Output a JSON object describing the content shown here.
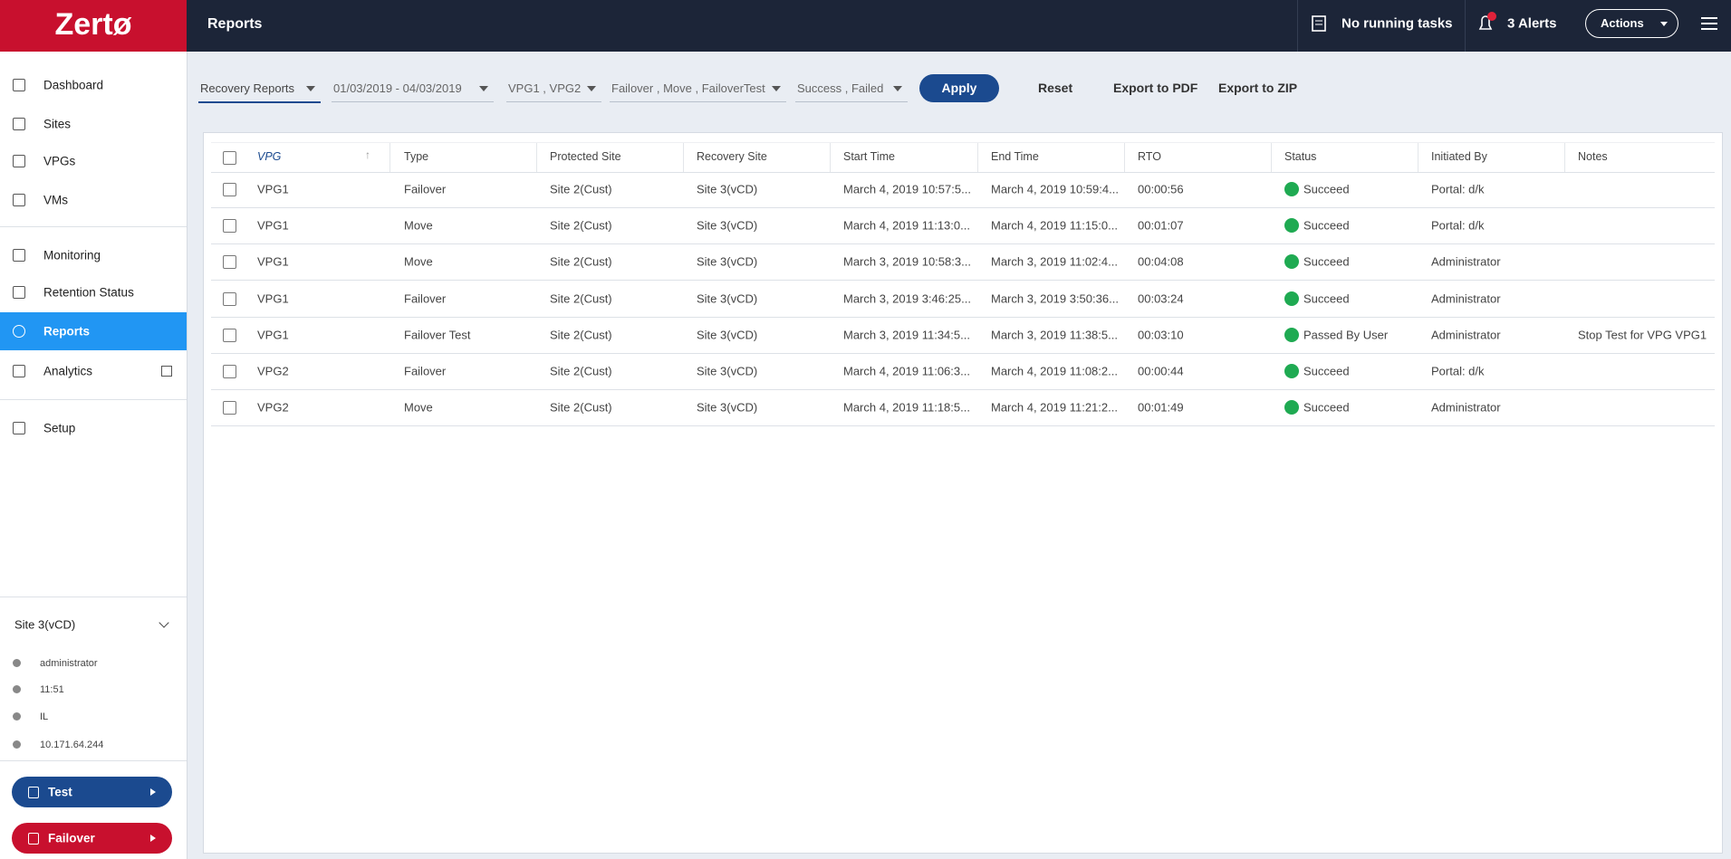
{
  "logo": "Zertø",
  "header": {
    "title": "Reports",
    "tasks": "No running tasks",
    "alerts": "3 Alerts",
    "actions": "Actions"
  },
  "nav": [
    "Dashboard",
    "Sites",
    "VPGs",
    "VMs",
    "Monitoring",
    "Retention Status",
    "Reports",
    "Analytics",
    "Setup"
  ],
  "site": {
    "name": "Site 3(vCD)",
    "user": "administrator",
    "time": "11:51",
    "location": "IL",
    "ip": "10.171.64.244"
  },
  "buttons": {
    "test": "Test",
    "failover": "Failover"
  },
  "filters": [
    "Recovery Reports",
    "01/03/2019 - 04/03/2019",
    "VPG1 , VPG2",
    "Failover , Move , FailoverTest",
    "Success , Failed"
  ],
  "actions": {
    "apply": "Apply",
    "reset": "Reset",
    "export_pdf": "Export to PDF",
    "export_zip": "Export to ZIP"
  },
  "table": {
    "columns": [
      "VPG",
      "Type",
      "Protected Site",
      "Recovery Site",
      "Start Time",
      "End Time",
      "RTO",
      "Status",
      "Initiated By",
      "Notes"
    ],
    "rows": [
      [
        "VPG1",
        "Failover",
        "Site 2(Cust)",
        "Site 3(vCD)",
        "March 4, 2019 10:57:5...",
        "March 4, 2019 10:59:4...",
        "00:00:56",
        "Succeed",
        "Portal: d/k"
      ],
      [
        "VPG1",
        "Move",
        "Site 2(Cust)",
        "Site 3(vCD)",
        "March 4, 2019 11:13:0...",
        "March 4, 2019 11:15:0...",
        "00:01:07",
        "Succeed",
        "Portal: d/k"
      ],
      [
        "VPG1",
        "Move",
        "Site 2(Cust)",
        "Site 3(vCD)",
        "March 3, 2019 10:58:3...",
        "March 3, 2019 11:02:4...",
        "00:04:08",
        "Succeed",
        "Administrator"
      ],
      [
        "VPG1",
        "Failover",
        "Site 2(Cust)",
        "Site 3(vCD)",
        "March 3, 2019 3:46:25...",
        "March 3, 2019 3:50:36...",
        "00:03:24",
        "Succeed",
        "Administrator"
      ],
      [
        "VPG1",
        "Failover Test",
        "Site 2(Cust)",
        "Site 3(vCD)",
        "March 3, 2019 11:34:5...",
        "March 3, 2019 11:38:5...",
        "00:03:10",
        "Passed By User",
        "Administrator",
        "Stop Test for VPG VPG1"
      ],
      [
        "VPG2",
        "Failover",
        "Site 2(Cust)",
        "Site 3(vCD)",
        "March 4, 2019 11:06:3...",
        "March 4, 2019 11:08:2...",
        "00:00:44",
        "Succeed",
        "Portal: d/k"
      ],
      [
        "VPG2",
        "Move",
        "Site 2(Cust)",
        "Site 3(vCD)",
        "March 4, 2019 11:18:5...",
        "March 4, 2019 11:21:2...",
        "00:01:49",
        "Succeed",
        "Administrator"
      ]
    ]
  }
}
